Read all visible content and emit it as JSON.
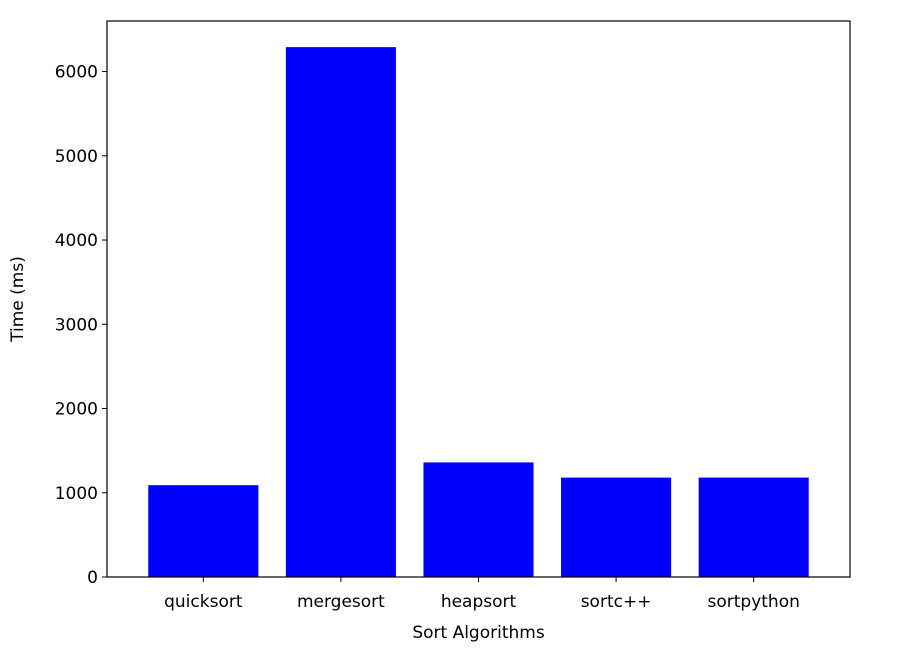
{
  "chart_data": {
    "type": "bar",
    "title": "",
    "xlabel": "Sort Algorithms",
    "ylabel": "Time (ms)",
    "categories": [
      "quicksort",
      "mergesort",
      "heapsort",
      "sortc++",
      "sortpython"
    ],
    "values": [
      1090,
      6290,
      1360,
      1180,
      1180
    ],
    "ylim": [
      0,
      6600
    ],
    "yticks": [
      0,
      1000,
      2000,
      3000,
      4000,
      5000,
      6000
    ],
    "ytick_labels": [
      "0",
      "1000",
      "2000",
      "3000",
      "4000",
      "5000",
      "6000"
    ],
    "grid": false,
    "legend": "none",
    "bar_color": "#0000ff"
  }
}
